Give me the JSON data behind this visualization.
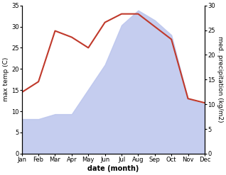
{
  "months": [
    "Jan",
    "Feb",
    "Mar",
    "Apr",
    "May",
    "Jun",
    "Jul",
    "Aug",
    "Sep",
    "Oct",
    "Nov",
    "Dec"
  ],
  "temperature": [
    14.5,
    17,
    29,
    27.5,
    25,
    31,
    33,
    33,
    30,
    27,
    13,
    12
  ],
  "precipitation": [
    7,
    7,
    8,
    8,
    13,
    18,
    26,
    29,
    27,
    24,
    11,
    10
  ],
  "temp_color": "#c0392b",
  "precip_fill_color": "#bbc5ed",
  "left_ylabel": "max temp (C)",
  "right_ylabel": "med. precipitation (kg/m2)",
  "xlabel": "date (month)",
  "ylim_left": [
    0,
    35
  ],
  "ylim_right": [
    0,
    30
  ],
  "left_yticks": [
    0,
    5,
    10,
    15,
    20,
    25,
    30,
    35
  ],
  "right_yticks": [
    0,
    5,
    10,
    15,
    20,
    25,
    30
  ]
}
